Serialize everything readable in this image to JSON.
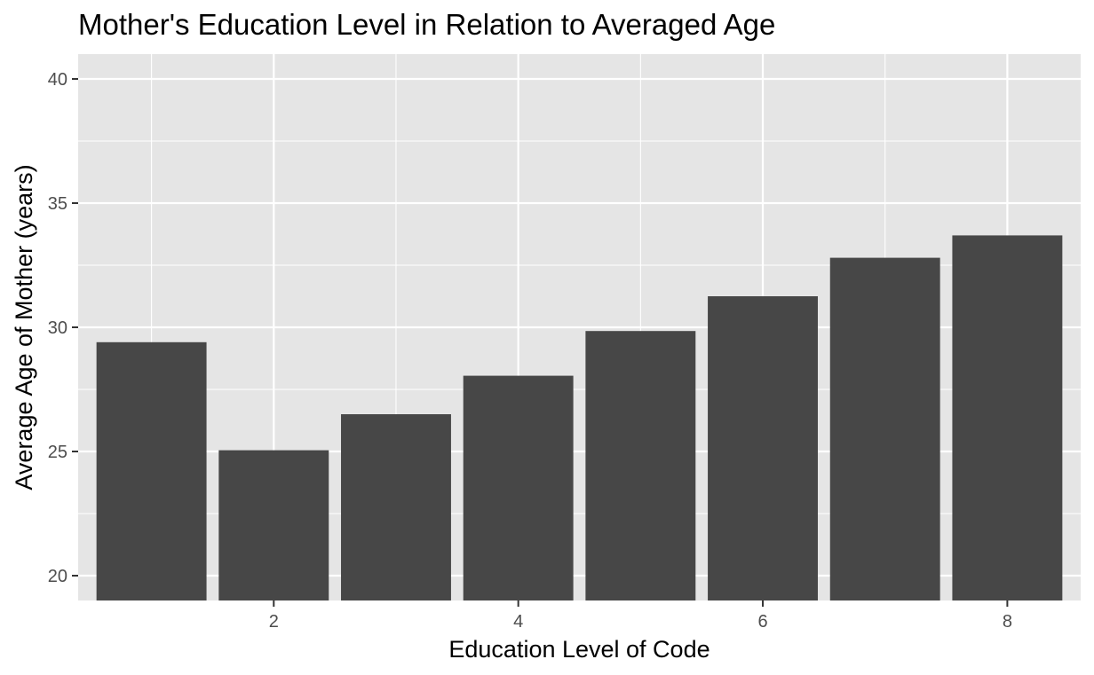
{
  "chart_data": {
    "type": "bar",
    "title": "Mother's Education Level in Relation to Averaged Age",
    "xlabel": "Education Level of Code",
    "ylabel": "Average Age of Mother (years)",
    "x": [
      1,
      2,
      3,
      4,
      5,
      6,
      7,
      8
    ],
    "values": [
      29.4,
      25.05,
      26.5,
      28.05,
      29.85,
      31.25,
      32.8,
      33.7
    ],
    "xlim": [
      0.4,
      8.6
    ],
    "ylim": [
      19.0,
      41.0
    ],
    "x_ticks": [
      2,
      4,
      6,
      8
    ],
    "y_ticks": [
      20,
      25,
      30,
      35,
      40
    ],
    "grid": true,
    "legend": "none",
    "colors": {
      "bar": "#474747",
      "panel": "#e5e5e5",
      "grid": "#ffffff",
      "tick_label": "#4d4d4d",
      "tick_mark": "#333333",
      "text": "#000000"
    }
  }
}
